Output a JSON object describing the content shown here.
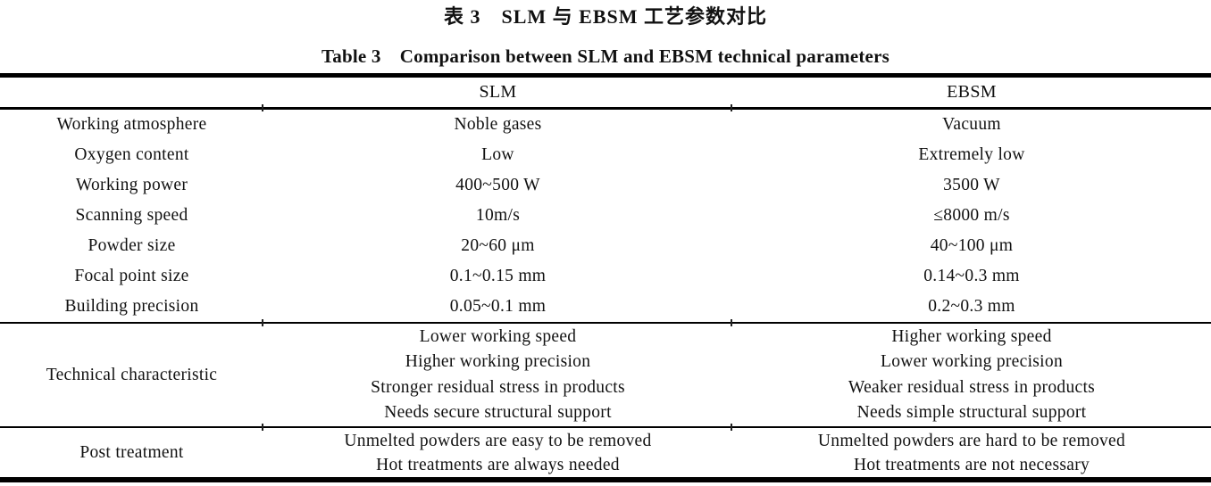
{
  "titles": {
    "zh": "表 3　SLM 与 EBSM 工艺参数对比",
    "en": "Table 3　Comparison between SLM and EBSM technical parameters"
  },
  "table": {
    "columns": [
      "",
      "SLM",
      "EBSM"
    ],
    "rows": [
      {
        "label": "Working atmosphere",
        "slm": "Noble gases",
        "ebsm": "Vacuum"
      },
      {
        "label": "Oxygen content",
        "slm": "Low",
        "ebsm": "Extremely low"
      },
      {
        "label": "Working power",
        "slm": "400~500 W",
        "ebsm": "3500 W"
      },
      {
        "label": "Scanning speed",
        "slm": "10m/s",
        "ebsm": "≤8000 m/s"
      },
      {
        "label": "Powder size",
        "slm": "20~60 μm",
        "ebsm": "40~100 μm"
      },
      {
        "label": "Focal point size",
        "slm": "0.1~0.15 mm",
        "ebsm": "0.14~0.3 mm"
      },
      {
        "label": "Building precision",
        "slm": "0.05~0.1 mm",
        "ebsm": "0.2~0.3 mm"
      }
    ],
    "multiline_rows": [
      {
        "label": "Technical characteristic",
        "slm_lines": [
          "Lower working speed",
          "Higher working precision",
          "Stronger residual stress in products",
          "Needs secure structural support"
        ],
        "ebsm_lines": [
          "Higher working speed",
          "Lower working precision",
          "Weaker residual stress in products",
          "Needs simple structural support"
        ]
      },
      {
        "label": "Post treatment",
        "slm_lines": [
          "Unmelted powders are easy to be removed",
          "Hot treatments are always needed"
        ],
        "ebsm_lines": [
          "Unmelted powders are hard to be removed",
          "Hot treatments are not necessary"
        ]
      }
    ]
  },
  "colors": {
    "text": "#111111",
    "rule": "#000000",
    "background": "#ffffff"
  }
}
